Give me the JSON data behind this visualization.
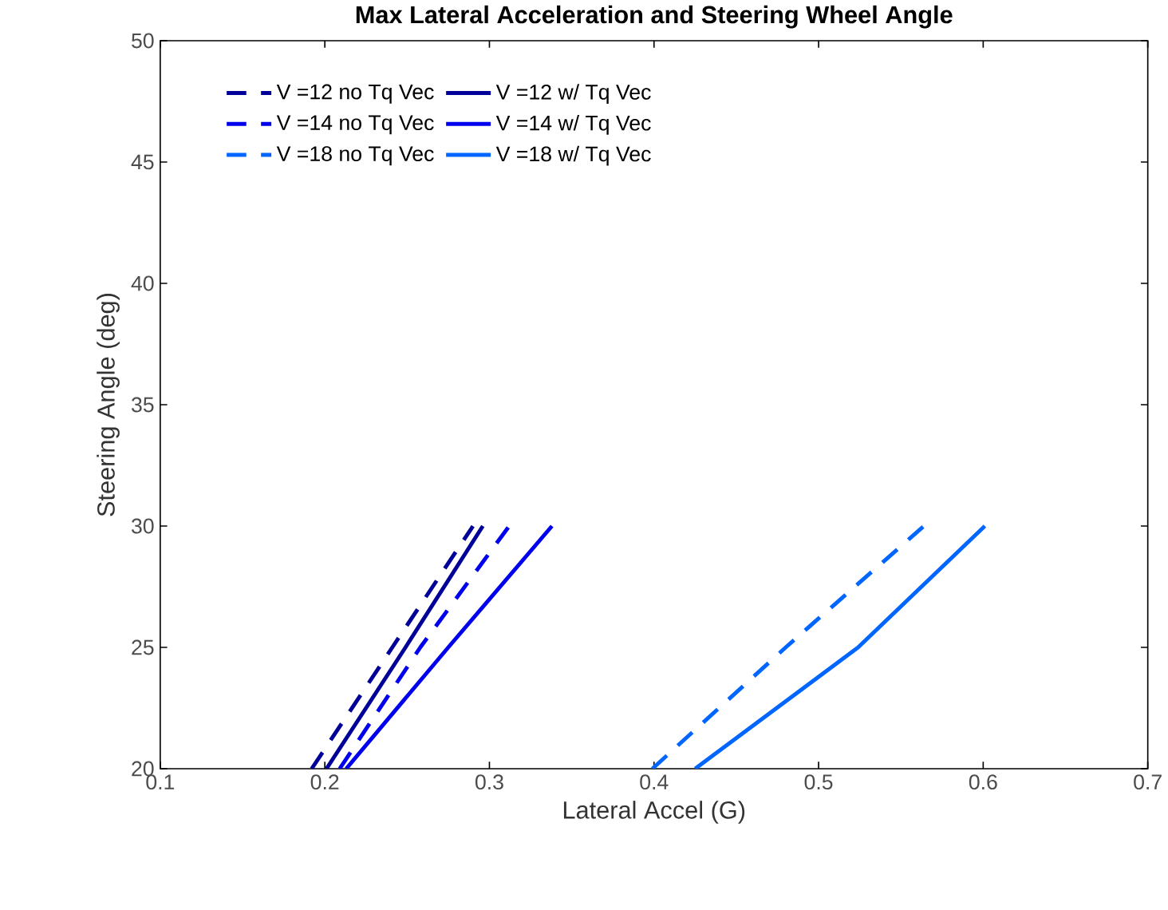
{
  "chart_data": {
    "type": "line",
    "title": "Max Lateral Acceleration and Steering Wheel Angle",
    "xlabel": "Lateral Accel (G)",
    "ylabel": "Steering Angle (deg)",
    "xlim": [
      0.1,
      0.7
    ],
    "ylim": [
      20,
      50
    ],
    "xticks": [
      0.1,
      0.2,
      0.3,
      0.4,
      0.5,
      0.6,
      0.7
    ],
    "yticks": [
      20,
      25,
      30,
      35,
      40,
      45,
      50
    ],
    "grid": false,
    "legend": "top left",
    "marker": "none",
    "series": [
      {
        "name": "V =12 no Tq Vec",
        "color": "#000099",
        "line_style": "dashed",
        "x": [
          0.192,
          0.241,
          0.29
        ],
        "values": [
          20,
          25,
          30
        ]
      },
      {
        "name": "V =12 w/ Tq Vec",
        "color": "#000099",
        "line_style": "solid",
        "x": [
          0.201,
          0.249,
          0.296
        ],
        "values": [
          20,
          25,
          30
        ]
      },
      {
        "name": "V =14 no Tq Vec",
        "color": "#0000ee",
        "line_style": "dashed",
        "x": [
          0.209,
          0.258,
          0.312
        ],
        "values": [
          20,
          25,
          30
        ]
      },
      {
        "name": "V =14 w/ Tq Vec",
        "color": "#0000ee",
        "line_style": "solid",
        "x": [
          0.213,
          0.275,
          0.338
        ],
        "values": [
          20,
          25,
          30
        ]
      },
      {
        "name": "V =18 no Tq Vec",
        "color": "#0066ff",
        "line_style": "dashed",
        "x": [
          0.399,
          0.48,
          0.564
        ],
        "values": [
          20,
          25,
          30
        ]
      },
      {
        "name": "V =18 w/ Tq Vec",
        "color": "#0066ff",
        "line_style": "solid",
        "x": [
          0.425,
          0.524,
          0.601
        ],
        "values": [
          20,
          25,
          30
        ]
      }
    ]
  }
}
